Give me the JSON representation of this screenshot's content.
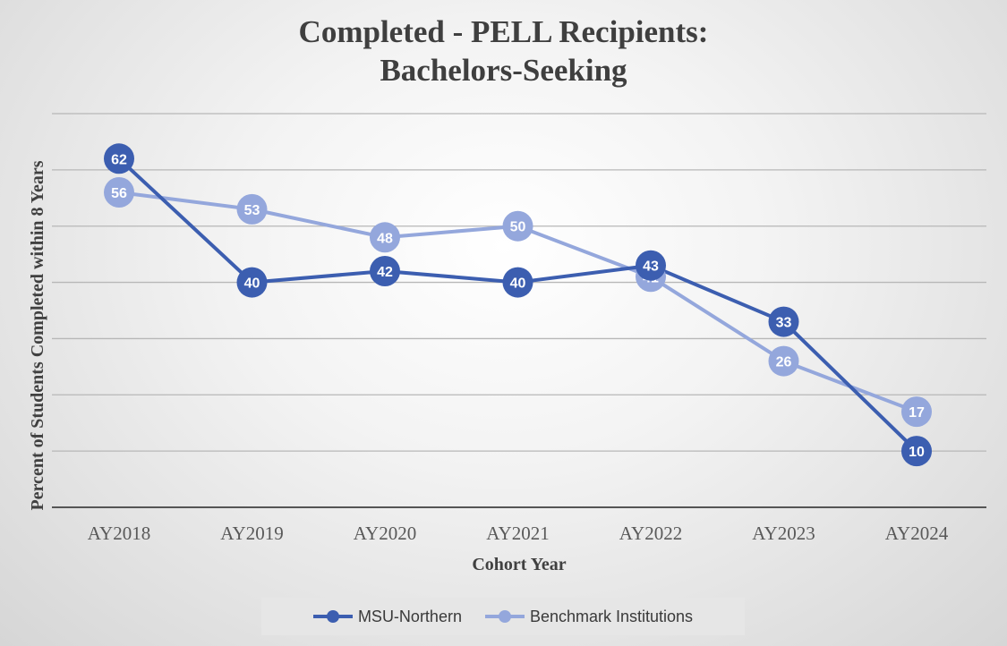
{
  "chart_data": {
    "type": "line",
    "title_lines": [
      "Completed - PELL Recipients:",
      "Bachelors-Seeking"
    ],
    "xlabel": "Cohort Year",
    "ylabel": "Percent of Students Completed within 8 Years",
    "categories": [
      "AY2018",
      "AY2019",
      "AY2020",
      "AY2021",
      "AY2022",
      "AY2023",
      "AY2024"
    ],
    "ylim": [
      0,
      70
    ],
    "grid": true,
    "legend_position": "bottom",
    "series": [
      {
        "name": "MSU-Northern",
        "color": "#3c5eb0",
        "values": [
          62,
          40,
          42,
          40,
          43,
          33,
          10
        ],
        "labels": [
          "62",
          "40",
          "42",
          "40",
          "43",
          "33",
          "10"
        ]
      },
      {
        "name": "Benchmark Institutions",
        "color": "#94a7dc",
        "values": [
          56,
          53,
          48,
          50,
          41,
          26,
          17
        ],
        "labels": [
          "56",
          "53",
          "48",
          "50",
          "41",
          "26",
          "17"
        ]
      }
    ]
  }
}
